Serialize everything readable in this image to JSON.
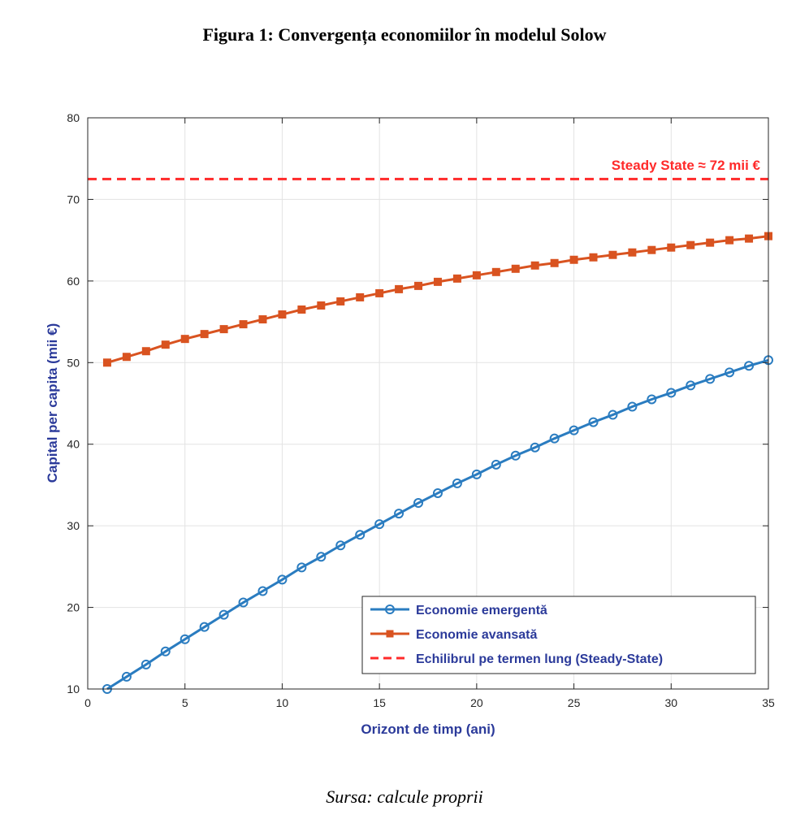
{
  "figure": {
    "title": "Figura 1: Convergența economiilor în modelul Solow",
    "source": "Sursa: calcule proprii"
  },
  "chart_data": {
    "type": "line",
    "xlabel": "Orizont de timp (ani)",
    "ylabel": "Capital per capita (mii €)",
    "xlim": [
      0,
      35
    ],
    "ylim": [
      10,
      80
    ],
    "xticks": [
      0,
      5,
      10,
      15,
      20,
      25,
      30,
      35
    ],
    "yticks": [
      10,
      20,
      30,
      40,
      50,
      60,
      70,
      80
    ],
    "grid": true,
    "legend_position": "bottom-right",
    "x": [
      1,
      2,
      3,
      4,
      5,
      6,
      7,
      8,
      9,
      10,
      11,
      12,
      13,
      14,
      15,
      16,
      17,
      18,
      19,
      20,
      21,
      22,
      23,
      24,
      25,
      26,
      27,
      28,
      29,
      30,
      31,
      32,
      33,
      34,
      35
    ],
    "series": [
      {
        "name": "Economie emergentă",
        "color": "#2a7cc0",
        "marker": "circle",
        "values": [
          10.0,
          11.5,
          13.0,
          14.6,
          16.1,
          17.6,
          19.1,
          20.6,
          22.0,
          23.4,
          24.9,
          26.2,
          27.6,
          28.9,
          30.2,
          31.5,
          32.8,
          34.0,
          35.2,
          36.3,
          37.5,
          38.6,
          39.6,
          40.7,
          41.7,
          42.7,
          43.6,
          44.6,
          45.5,
          46.3,
          47.2,
          48.0,
          48.8,
          49.6,
          50.3
        ]
      },
      {
        "name": "Economie avansată",
        "color": "#d95320",
        "marker": "square",
        "values": [
          50.0,
          50.7,
          51.4,
          52.2,
          52.9,
          53.5,
          54.1,
          54.7,
          55.3,
          55.9,
          56.5,
          57.0,
          57.5,
          58.0,
          58.5,
          59.0,
          59.4,
          59.9,
          60.3,
          60.7,
          61.1,
          61.5,
          61.9,
          62.2,
          62.6,
          62.9,
          63.2,
          63.5,
          63.8,
          64.1,
          64.4,
          64.7,
          65.0,
          65.2,
          65.5
        ]
      }
    ],
    "reference_line": {
      "name": "Echilibrul pe termen lung (Steady-State)",
      "value": 72.5,
      "color": "#ff2a2a",
      "style": "dashed",
      "annotation": "Steady State ≈ 72 mii €"
    },
    "label_color": "#2b3a9a"
  }
}
